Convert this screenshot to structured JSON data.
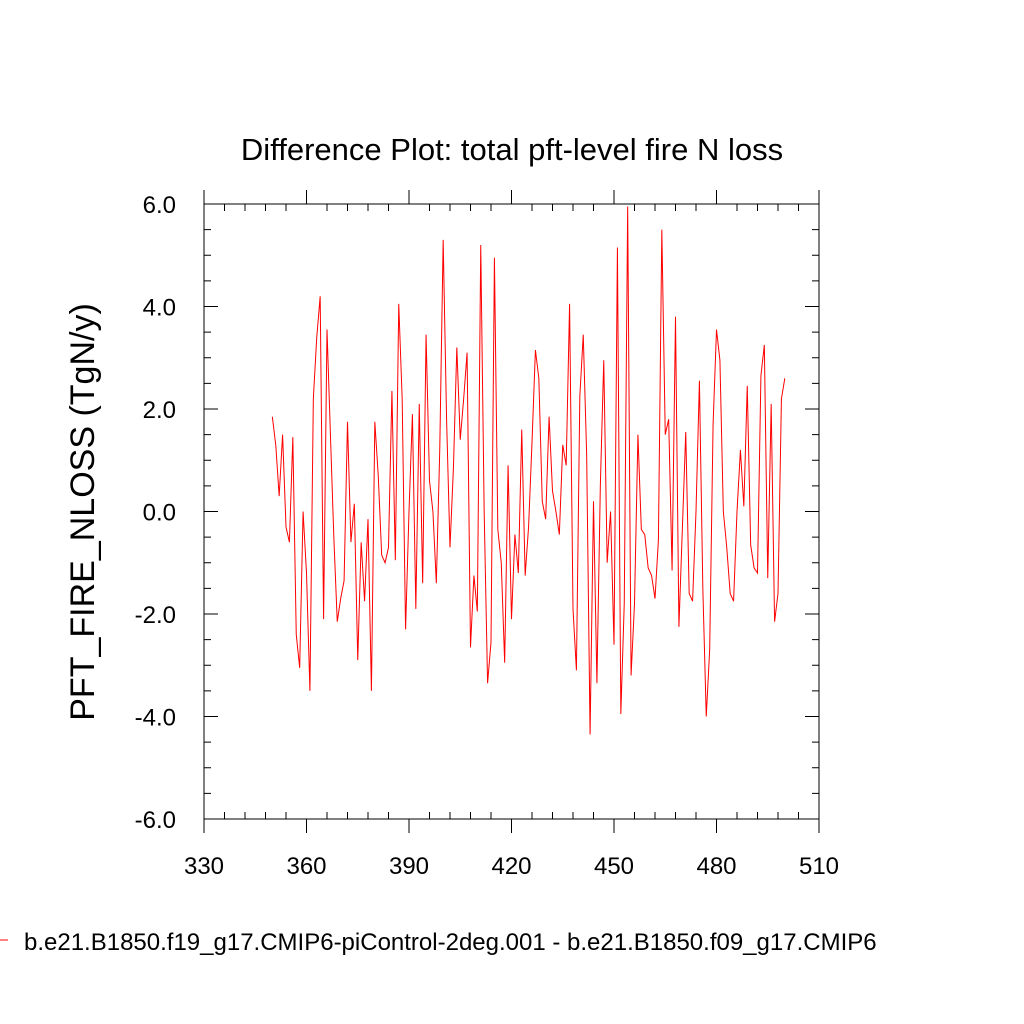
{
  "chart_data": {
    "type": "line",
    "title": "Difference Plot: total pft-level fire N loss",
    "xlabel": "",
    "ylabel": "PFT_FIRE_NLOSS  (TgN/y)",
    "xlim": [
      330,
      510
    ],
    "ylim": [
      -6.0,
      6.0
    ],
    "xticks": [
      330,
      360,
      390,
      420,
      450,
      480,
      510
    ],
    "xtick_labels": [
      "330",
      "360",
      "390",
      "420",
      "450",
      "480",
      "510"
    ],
    "yticks": [
      -6,
      -4,
      -2,
      0,
      2,
      4,
      6
    ],
    "ytick_labels": [
      "-6.0",
      "-4.0",
      "-2.0",
      "0.0",
      "2.0",
      "4.0",
      "6.0"
    ],
    "legend_position": "bottom",
    "series": [
      {
        "name": "b.e21.B1850.f19_g17.CMIP6-piControl-2deg.001 - b.e21.B1850.f09_g17.CMIP6",
        "color": "#ff0000",
        "x_start": 350,
        "x_step": 1,
        "values": [
          1.85,
          1.3,
          0.3,
          1.5,
          -0.3,
          -0.6,
          1.45,
          -2.4,
          -3.05,
          0.0,
          -1.2,
          -3.5,
          2.2,
          3.4,
          4.2,
          -2.1,
          3.55,
          1.5,
          -0.5,
          -2.15,
          -1.7,
          -1.35,
          1.75,
          -0.6,
          0.15,
          -2.9,
          -0.6,
          -1.75,
          -0.15,
          -3.5,
          1.75,
          0.7,
          -0.85,
          -1.0,
          -0.7,
          2.35,
          -0.95,
          4.05,
          2.2,
          -2.3,
          0.0,
          1.9,
          -1.9,
          2.1,
          -1.4,
          3.45,
          0.6,
          0.0,
          -1.4,
          1.2,
          5.3,
          1.8,
          -0.7,
          0.85,
          3.2,
          1.4,
          2.2,
          3.1,
          -2.65,
          -1.25,
          -1.95,
          5.2,
          0.0,
          -3.35,
          -2.55,
          4.95,
          -0.35,
          -1.0,
          -2.95,
          0.9,
          -2.1,
          -0.45,
          -1.2,
          1.6,
          -1.25,
          -0.3,
          1.35,
          3.15,
          2.6,
          0.2,
          -0.15,
          1.85,
          0.4,
          0.0,
          -0.45,
          1.3,
          0.9,
          4.05,
          -1.9,
          -3.1,
          2.25,
          3.45,
          1.1,
          -4.35,
          0.2,
          -3.35,
          0.5,
          2.95,
          -1.0,
          0.0,
          -2.6,
          5.15,
          -3.95,
          -1.8,
          5.95,
          -3.2,
          -1.8,
          1.5,
          -0.35,
          -0.45,
          -1.1,
          -1.25,
          -1.7,
          -0.55,
          5.5,
          1.5,
          1.8,
          -1.15,
          3.8,
          -2.25,
          -0.35,
          1.55,
          -1.6,
          -1.75,
          0.0,
          2.55,
          -1.5,
          -4.0,
          -2.7,
          1.7,
          3.55,
          2.95,
          0.0,
          -0.7,
          -1.6,
          -1.75,
          0.0,
          1.2,
          0.1,
          2.45,
          -0.65,
          -1.1,
          -1.2,
          2.65,
          3.25,
          -1.3,
          2.1,
          -2.15,
          -1.6,
          2.2,
          2.6
        ]
      }
    ]
  }
}
